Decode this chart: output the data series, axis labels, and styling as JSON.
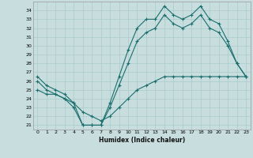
{
  "title": "",
  "xlabel": "Humidex (Indice chaleur)",
  "background_color": "#c8dede",
  "grid_color": "#aacaca",
  "line_color": "#1a6e6e",
  "xlim": [
    -0.5,
    23.5
  ],
  "ylim": [
    20.5,
    35.0
  ],
  "xticks": [
    0,
    1,
    2,
    3,
    4,
    5,
    6,
    7,
    8,
    9,
    10,
    11,
    12,
    13,
    14,
    15,
    16,
    17,
    18,
    19,
    20,
    21,
    22,
    23
  ],
  "yticks": [
    21,
    22,
    23,
    24,
    25,
    26,
    27,
    28,
    29,
    30,
    31,
    32,
    33,
    34
  ],
  "line1_x": [
    0,
    1,
    2,
    3,
    4,
    5,
    6,
    7,
    8,
    9,
    10,
    11,
    12,
    13,
    14,
    15,
    16,
    17,
    18,
    19,
    20,
    21,
    22,
    23
  ],
  "line1_y": [
    26.5,
    25.5,
    25.0,
    24.5,
    23.5,
    21.0,
    21.0,
    21.0,
    23.5,
    26.5,
    29.5,
    32.0,
    33.0,
    33.0,
    34.5,
    33.5,
    33.0,
    33.5,
    34.5,
    33.0,
    32.5,
    30.5,
    28.0,
    26.5
  ],
  "line2_x": [
    0,
    1,
    2,
    3,
    4,
    5,
    6,
    7,
    8,
    9,
    10,
    11,
    12,
    13,
    14,
    15,
    16,
    17,
    18,
    19,
    20,
    21,
    22,
    23
  ],
  "line2_y": [
    26.0,
    25.0,
    24.5,
    24.0,
    23.0,
    21.0,
    21.0,
    21.0,
    23.0,
    25.5,
    28.0,
    30.5,
    31.5,
    32.0,
    33.5,
    32.5,
    32.0,
    32.5,
    33.5,
    32.0,
    31.5,
    30.0,
    28.0,
    26.5
  ],
  "line3_x": [
    0,
    1,
    2,
    3,
    4,
    5,
    6,
    7,
    8,
    9,
    10,
    11,
    12,
    13,
    14,
    15,
    16,
    17,
    18,
    19,
    20,
    21,
    22,
    23
  ],
  "line3_y": [
    25.0,
    24.5,
    24.5,
    24.0,
    23.5,
    22.5,
    22.0,
    21.5,
    22.0,
    23.0,
    24.0,
    25.0,
    25.5,
    26.0,
    26.5,
    26.5,
    26.5,
    26.5,
    26.5,
    26.5,
    26.5,
    26.5,
    26.5,
    26.5
  ]
}
